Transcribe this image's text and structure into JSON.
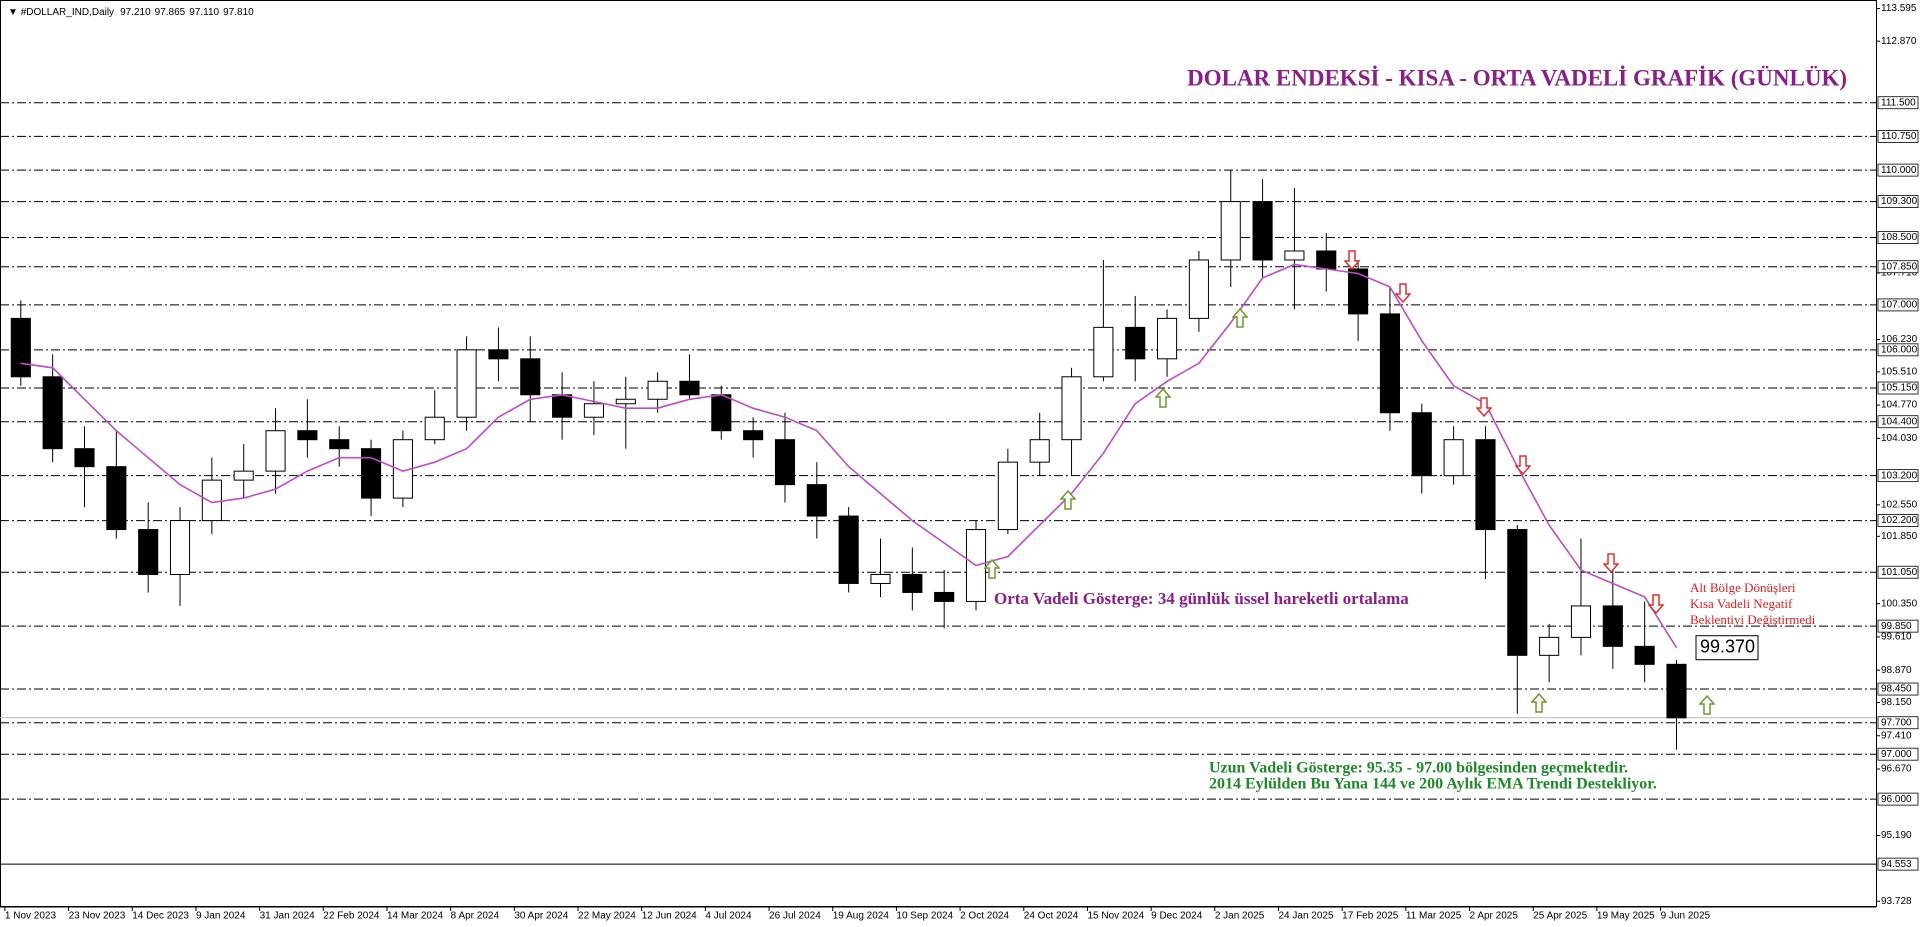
{
  "header": {
    "symbol": "#DOLLAR_IND,Daily",
    "values": [
      "97.210",
      "97.865",
      "97.110",
      "97.810"
    ]
  },
  "chart_data": {
    "type": "candlestick",
    "title": "DOLAR ENDEKSİ - KISA - ORTA VADELİ GRAFİK (GÜNLÜK)",
    "annotations": {
      "ema_note": "Orta Vadeli Gösterge: 34 günlük üssel hareketli ortalama",
      "short_note": [
        "Alt Bölge Dönüşleri",
        "Kısa Vadeli Negatif",
        "Beklentiyi Değiştirmedi"
      ],
      "long_note": [
        "Uzun Vadeli Gösterge: 95.35 - 97.00 bölgesinden geçmektedir.",
        "2014 Eylülden Bu Yana 144 ve 200 Aylık EMA Trendi Destekliyor."
      ]
    },
    "categories": [
      "1 Nov 2023",
      null,
      "23 Nov 2023",
      null,
      "14 Dec 2023",
      null,
      "9 Jan 2024",
      null,
      "31 Jan 2024",
      null,
      "22 Feb 2024",
      null,
      "14 Mar 2024",
      null,
      "8 Apr 2024",
      null,
      "30 Apr 2024",
      null,
      "22 May 2024",
      null,
      "12 Jun 2024",
      null,
      "4 Jul 2024",
      null,
      "26 Jul 2024",
      null,
      "19 Aug 2024",
      null,
      "10 Sep 2024",
      null,
      "2 Oct 2024",
      null,
      "24 Oct 2024",
      null,
      "15 Nov 2024",
      null,
      "9 Dec 2024",
      null,
      "2 Jan 2025",
      null,
      "24 Jan 2025",
      null,
      "17 Feb 2025",
      null,
      "11 Mar 2025",
      null,
      "2 Apr 2025",
      null,
      "25 Apr 2025",
      null,
      "19 May 2025",
      null,
      "9 Jun 2025"
    ],
    "open": [
      106.7,
      105.4,
      103.8,
      103.4,
      102.0,
      101.0,
      102.2,
      103.1,
      103.3,
      104.2,
      104.0,
      103.8,
      102.7,
      104.0,
      104.5,
      106.0,
      105.8,
      105.0,
      104.5,
      104.8,
      104.9,
      105.3,
      105.0,
      104.2,
      104.0,
      103.0,
      102.3,
      100.8,
      101.0,
      100.6,
      100.4,
      102.0,
      103.5,
      104.0,
      105.4,
      106.5,
      105.8,
      106.7,
      108.0,
      109.3,
      108.0,
      108.2,
      107.8,
      106.8,
      104.6,
      103.2,
      104.0,
      102.0,
      99.2,
      99.6,
      100.3,
      99.4,
      99.0
    ],
    "high": [
      107.1,
      105.9,
      104.3,
      104.2,
      102.6,
      102.5,
      103.6,
      103.9,
      104.7,
      104.9,
      104.3,
      104.0,
      104.2,
      105.1,
      106.3,
      106.5,
      106.3,
      105.5,
      105.3,
      105.4,
      105.5,
      105.9,
      105.2,
      104.5,
      104.6,
      103.5,
      102.5,
      101.8,
      101.6,
      101.1,
      102.2,
      103.8,
      104.6,
      105.6,
      108.0,
      107.2,
      106.9,
      108.2,
      110.0,
      109.8,
      109.6,
      108.6,
      108.0,
      107.4,
      104.8,
      104.3,
      104.3,
      102.1,
      99.9,
      101.8,
      101.2,
      100.4,
      99.1
    ],
    "low": [
      105.2,
      103.5,
      102.5,
      101.8,
      100.6,
      100.3,
      101.9,
      102.7,
      102.8,
      103.6,
      103.4,
      102.3,
      102.5,
      103.9,
      104.2,
      105.3,
      104.4,
      104.0,
      104.1,
      103.8,
      104.6,
      104.9,
      104.0,
      103.6,
      102.6,
      101.8,
      100.6,
      100.5,
      100.2,
      99.8,
      100.2,
      101.9,
      103.2,
      103.2,
      105.3,
      105.3,
      105.4,
      106.4,
      107.4,
      107.6,
      106.9,
      107.3,
      106.2,
      104.2,
      102.8,
      103.0,
      100.9,
      97.9,
      98.6,
      99.2,
      98.9,
      98.6,
      97.1
    ],
    "close": [
      105.4,
      103.8,
      103.4,
      102.0,
      101.0,
      102.2,
      103.1,
      103.3,
      104.2,
      104.0,
      103.8,
      102.7,
      104.0,
      104.5,
      106.0,
      105.8,
      105.0,
      104.5,
      104.8,
      104.9,
      105.3,
      105.0,
      104.2,
      104.0,
      103.0,
      102.3,
      100.8,
      101.0,
      100.6,
      100.4,
      102.0,
      103.5,
      104.0,
      105.4,
      106.5,
      105.8,
      106.7,
      108.0,
      109.3,
      108.0,
      108.2,
      107.8,
      106.8,
      104.6,
      103.2,
      104.0,
      102.0,
      99.2,
      99.6,
      100.3,
      99.4,
      99.0,
      97.81
    ],
    "bull_color": "#ffffff",
    "bear_color": "#000000",
    "ema": {
      "color": "#c04bc8",
      "values": [
        105.7,
        105.6,
        104.9,
        104.2,
        103.6,
        103.0,
        102.6,
        102.7,
        102.9,
        103.3,
        103.6,
        103.6,
        103.3,
        103.5,
        103.8,
        104.5,
        104.9,
        105.0,
        104.85,
        104.7,
        104.7,
        104.9,
        105.0,
        104.7,
        104.5,
        104.2,
        103.4,
        102.8,
        102.2,
        101.7,
        101.2,
        101.4,
        102.1,
        102.8,
        103.7,
        104.8,
        105.3,
        105.7,
        106.6,
        107.6,
        107.9,
        107.8,
        107.7,
        107.4,
        106.2,
        105.2,
        104.8,
        103.4,
        102.1,
        101.1,
        100.8,
        100.5,
        99.37
      ]
    },
    "ema_value_label": {
      "value": 99.37,
      "label": "99.370"
    },
    "current_price": 97.81,
    "ylim": [
      93.728,
      113.595
    ],
    "yticks": [
      {
        "value": 113.595,
        "label": "113.595"
      },
      {
        "value": 112.87,
        "label": "112.870"
      },
      {
        "value": 107.71,
        "label": "107.710"
      },
      {
        "value": 106.23,
        "label": "106.230"
      },
      {
        "value": 105.51,
        "label": "105.510"
      },
      {
        "value": 104.77,
        "label": "104.770"
      },
      {
        "value": 104.03,
        "label": "104.030"
      },
      {
        "value": 102.55,
        "label": "102.550"
      },
      {
        "value": 101.85,
        "label": "101.850"
      },
      {
        "value": 100.35,
        "label": "100.350"
      },
      {
        "value": 99.61,
        "label": "99.610"
      },
      {
        "value": 98.87,
        "label": "98.870"
      },
      {
        "value": 98.15,
        "label": "98.150"
      },
      {
        "value": 97.41,
        "label": "97.410"
      },
      {
        "value": 96.67,
        "label": "96.670"
      },
      {
        "value": 95.19,
        "label": "95.190"
      },
      {
        "value": 93.728,
        "label": "93.728"
      }
    ],
    "levels": [
      {
        "value": 111.5,
        "label": "111.500"
      },
      {
        "value": 110.75,
        "label": "110.750"
      },
      {
        "value": 110,
        "label": "110.000"
      },
      {
        "value": 109.3,
        "label": "109.300"
      },
      {
        "value": 108.5,
        "label": "108.500"
      },
      {
        "value": 107.85,
        "label": "107.850"
      },
      {
        "value": 107,
        "label": "107.000"
      },
      {
        "value": 106,
        "label": "106.000"
      },
      {
        "value": 105.15,
        "label": "105.150"
      },
      {
        "value": 104.4,
        "label": "104.400"
      },
      {
        "value": 103.2,
        "label": "103.200"
      },
      {
        "value": 102.2,
        "label": "102.200"
      },
      {
        "value": 101.05,
        "label": "101.050"
      },
      {
        "value": 99.85,
        "label": "99.850"
      },
      {
        "value": 98.45,
        "label": "98.450"
      },
      {
        "value": 97.7,
        "label": "97.700"
      },
      {
        "value": 97,
        "label": "97.000"
      },
      {
        "value": 96,
        "label": "96.000"
      }
    ],
    "solid_level": {
      "value": 94.553,
      "label": "94.553"
    }
  }
}
